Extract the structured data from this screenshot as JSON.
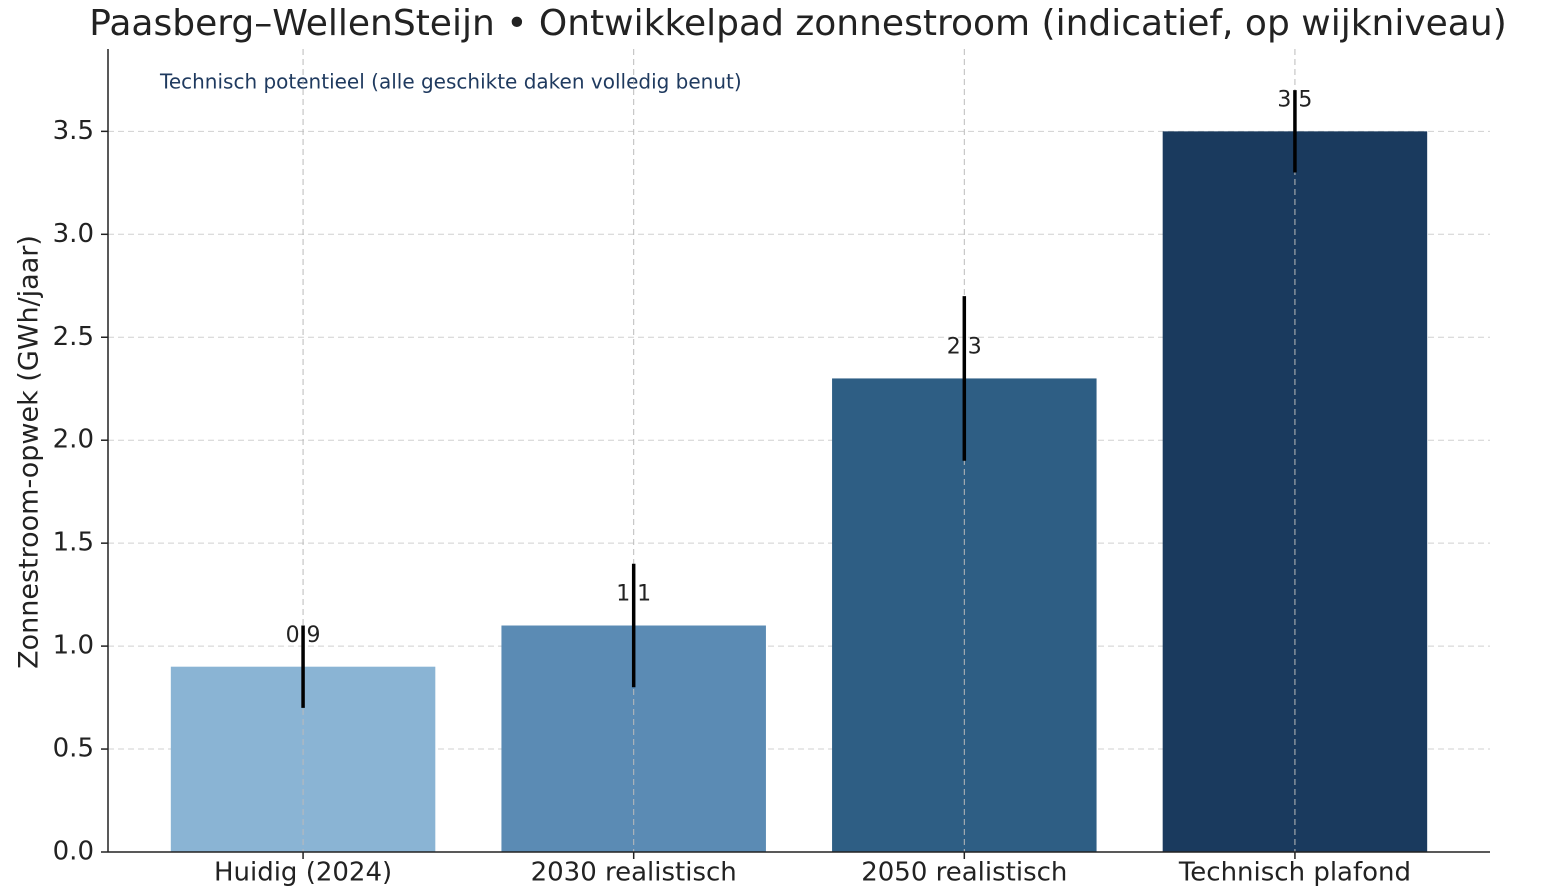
{
  "chart_data": {
    "type": "bar",
    "title": "Paasberg–WellenSteijn • Ontwikkelpad zonnestroom (indicatief, op wijkniveau)",
    "ylabel": "Zonnestroom-opwek (GWh/jaar)",
    "annotation": "Technisch potentieel (alle geschikte daken volledig benut)",
    "categories": [
      "Huidig (2024)",
      "2030 realistisch",
      "2050 realistisch",
      "Technisch plafond"
    ],
    "values": [
      0.9,
      1.1,
      2.3,
      3.5
    ],
    "errors": [
      0.2,
      0.3,
      0.4,
      0.2
    ],
    "colors": [
      "#8ab4d4",
      "#5b8bb4",
      "#2e5e84",
      "#1a3a5e"
    ],
    "ylim": [
      0,
      3.9
    ],
    "yticks": [
      {
        "value": 0,
        "label": "0.0"
      },
      0.5,
      {
        "value": 1,
        "label": "1.0"
      },
      1.5,
      {
        "value": 2,
        "label": "2.0"
      },
      2.5,
      {
        "value": 3,
        "label": "3.0"
      },
      3.5
    ],
    "grid": true
  }
}
